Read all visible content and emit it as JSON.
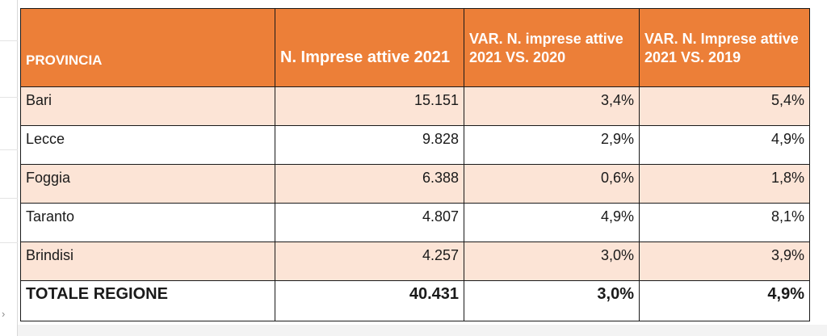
{
  "table": {
    "headers": {
      "provincia": "PROVINCIA",
      "imprese": "N. Imprese attive 2021",
      "var_2020": "VAR. N. imprese attive 2021 VS. 2020",
      "var_2019": "VAR. N. Imprese attive 2021 VS. 2019"
    },
    "rows": [
      {
        "provincia": "Bari",
        "imprese": "15.151",
        "var_2020": "3,4%",
        "var_2019": "5,4%"
      },
      {
        "provincia": "Lecce",
        "imprese": "9.828",
        "var_2020": "2,9%",
        "var_2019": "4,9%"
      },
      {
        "provincia": "Foggia",
        "imprese": "6.388",
        "var_2020": "0,6%",
        "var_2019": "1,8%"
      },
      {
        "provincia": "Taranto",
        "imprese": "4.807",
        "var_2020": "4,9%",
        "var_2019": "8,1%"
      },
      {
        "provincia": "Brindisi",
        "imprese": "4.257",
        "var_2020": "3,0%",
        "var_2019": "3,9%"
      }
    ],
    "total": {
      "provincia": "TOTALE REGIONE",
      "imprese": "40.431",
      "var_2020": "3,0%",
      "var_2019": "4,9%"
    }
  },
  "colors": {
    "header_bg": "#ec7f38",
    "header_text": "#ffffff",
    "band_bg": "#fce4d6",
    "border": "#1a1a1a"
  },
  "icons": {
    "edge": "chevron-right-icon"
  }
}
